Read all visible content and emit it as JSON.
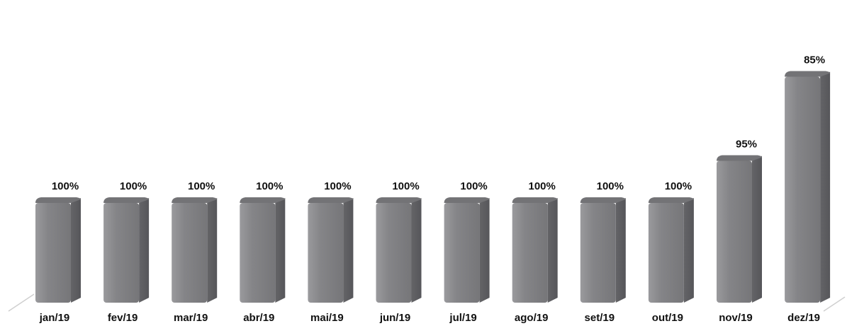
{
  "chart_data": {
    "type": "bar",
    "categories": [
      "jan/19",
      "fev/19",
      "mar/19",
      "abr/19",
      "mai/19",
      "jun/19",
      "jul/19",
      "ago/19",
      "set/19",
      "out/19",
      "nov/19",
      "dez/19"
    ],
    "values": [
      100,
      100,
      100,
      100,
      100,
      100,
      100,
      100,
      100,
      100,
      95,
      85
    ],
    "data_labels": [
      "100%",
      "100%",
      "100%",
      "100%",
      "100%",
      "100%",
      "100%",
      "100%",
      "100%",
      "100%",
      "95%",
      "85%"
    ],
    "ylim": [
      80,
      100
    ],
    "grid": false,
    "legend": "none",
    "colors": {
      "bar_front": "#828285",
      "bar_side": "#5f5f62",
      "bar_top": "#737376",
      "floor_line": "#cfcfcf"
    }
  }
}
